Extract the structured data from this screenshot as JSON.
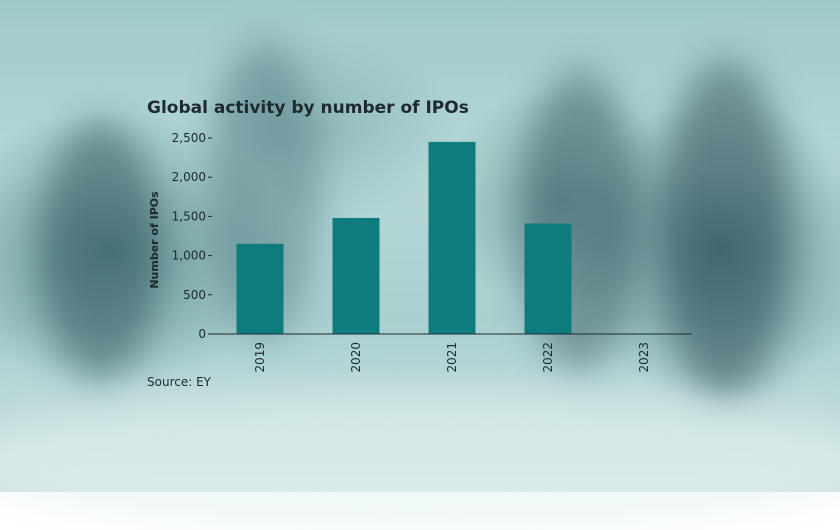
{
  "colors": {
    "bar": "#0e7b7e",
    "axis": "#1e2a30"
  },
  "chart_data": {
    "type": "bar",
    "title": "Global activity by number of IPOs",
    "ylabel": "Number of IPOs",
    "xlabel": "",
    "categories": [
      "2019",
      "2020",
      "2021",
      "2022",
      "2023"
    ],
    "values": [
      1150,
      1480,
      2450,
      1410,
      null
    ],
    "ylim": [
      0,
      2500
    ],
    "yticks": [
      "0",
      "500",
      "1,000",
      "1,500",
      "2,000",
      "2,500"
    ],
    "ytick_values": [
      0,
      500,
      1000,
      1500,
      2000,
      2500
    ],
    "grid": false,
    "source": "Source: EY"
  }
}
